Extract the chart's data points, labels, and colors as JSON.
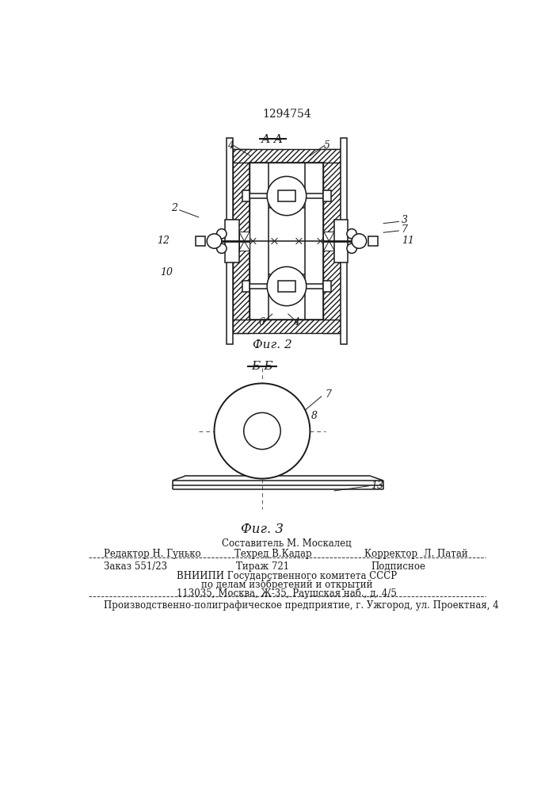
{
  "patent_number": "1294754",
  "fig2_label": "А-А",
  "fig2_caption": "Фиг. 2",
  "fig3_label": "Б-Б",
  "fig3_caption": "Фиг. 3",
  "footer_line1": "Составитель М. Москалец",
  "footer_line2_left": "Редактор Н. Гунько",
  "footer_line2_mid": "Техред В.Кадар",
  "footer_line2_right": "Корректор  Л. Патай",
  "footer_line3_left": "Заказ 551/23",
  "footer_line3_mid": "Тираж 721",
  "footer_line3_right": "Подписное",
  "footer_line4": "ВНИИПИ Государственного комитета СССР",
  "footer_line5": "по делам изобретений и открытий",
  "footer_line6": "113035, Москва, Ж-35, Раушская наб., д. 4/5",
  "footer_line7": "Производственно-полиграфическое предприятие, г. Ужгород, ул. Проектная, 4",
  "bg_color": "#ffffff",
  "line_color": "#1a1a1a"
}
